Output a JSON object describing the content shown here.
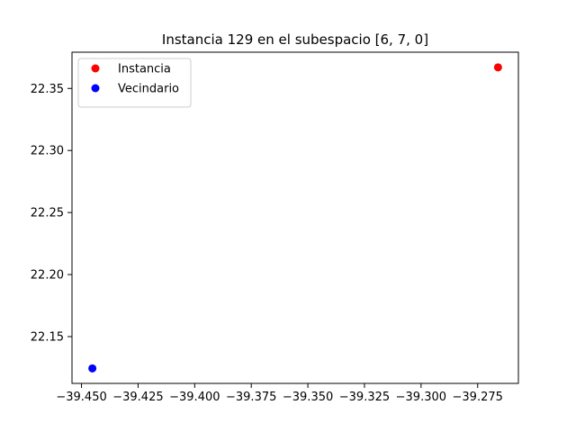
{
  "chart_data": {
    "type": "scatter",
    "title": "Instancia 129 en el subespacio [6, 7, 0]",
    "xlabel": "",
    "ylabel": "",
    "xlim": [
      -39.4542,
      -39.257
    ],
    "ylim": [
      22.1123,
      22.3792
    ],
    "x_ticks": [
      -39.45,
      -39.425,
      -39.4,
      -39.375,
      -39.35,
      -39.325,
      -39.3,
      -39.275
    ],
    "x_tick_labels": [
      "−39.450",
      "−39.425",
      "−39.400",
      "−39.375",
      "−39.350",
      "−39.325",
      "−39.300",
      "−39.275"
    ],
    "y_ticks": [
      22.15,
      22.2,
      22.25,
      22.3,
      22.35
    ],
    "y_tick_labels": [
      "22.15",
      "22.20",
      "22.25",
      "22.30",
      "22.35"
    ],
    "grid": false,
    "legend_position": "top-left",
    "series": [
      {
        "name": "Instancia",
        "color": "#ff0000",
        "points": [
          {
            "x": -39.266,
            "y": 22.367
          }
        ]
      },
      {
        "name": "Vecindario",
        "color": "#0000ff",
        "points": [
          {
            "x": -39.4452,
            "y": 22.1244
          }
        ]
      }
    ]
  }
}
